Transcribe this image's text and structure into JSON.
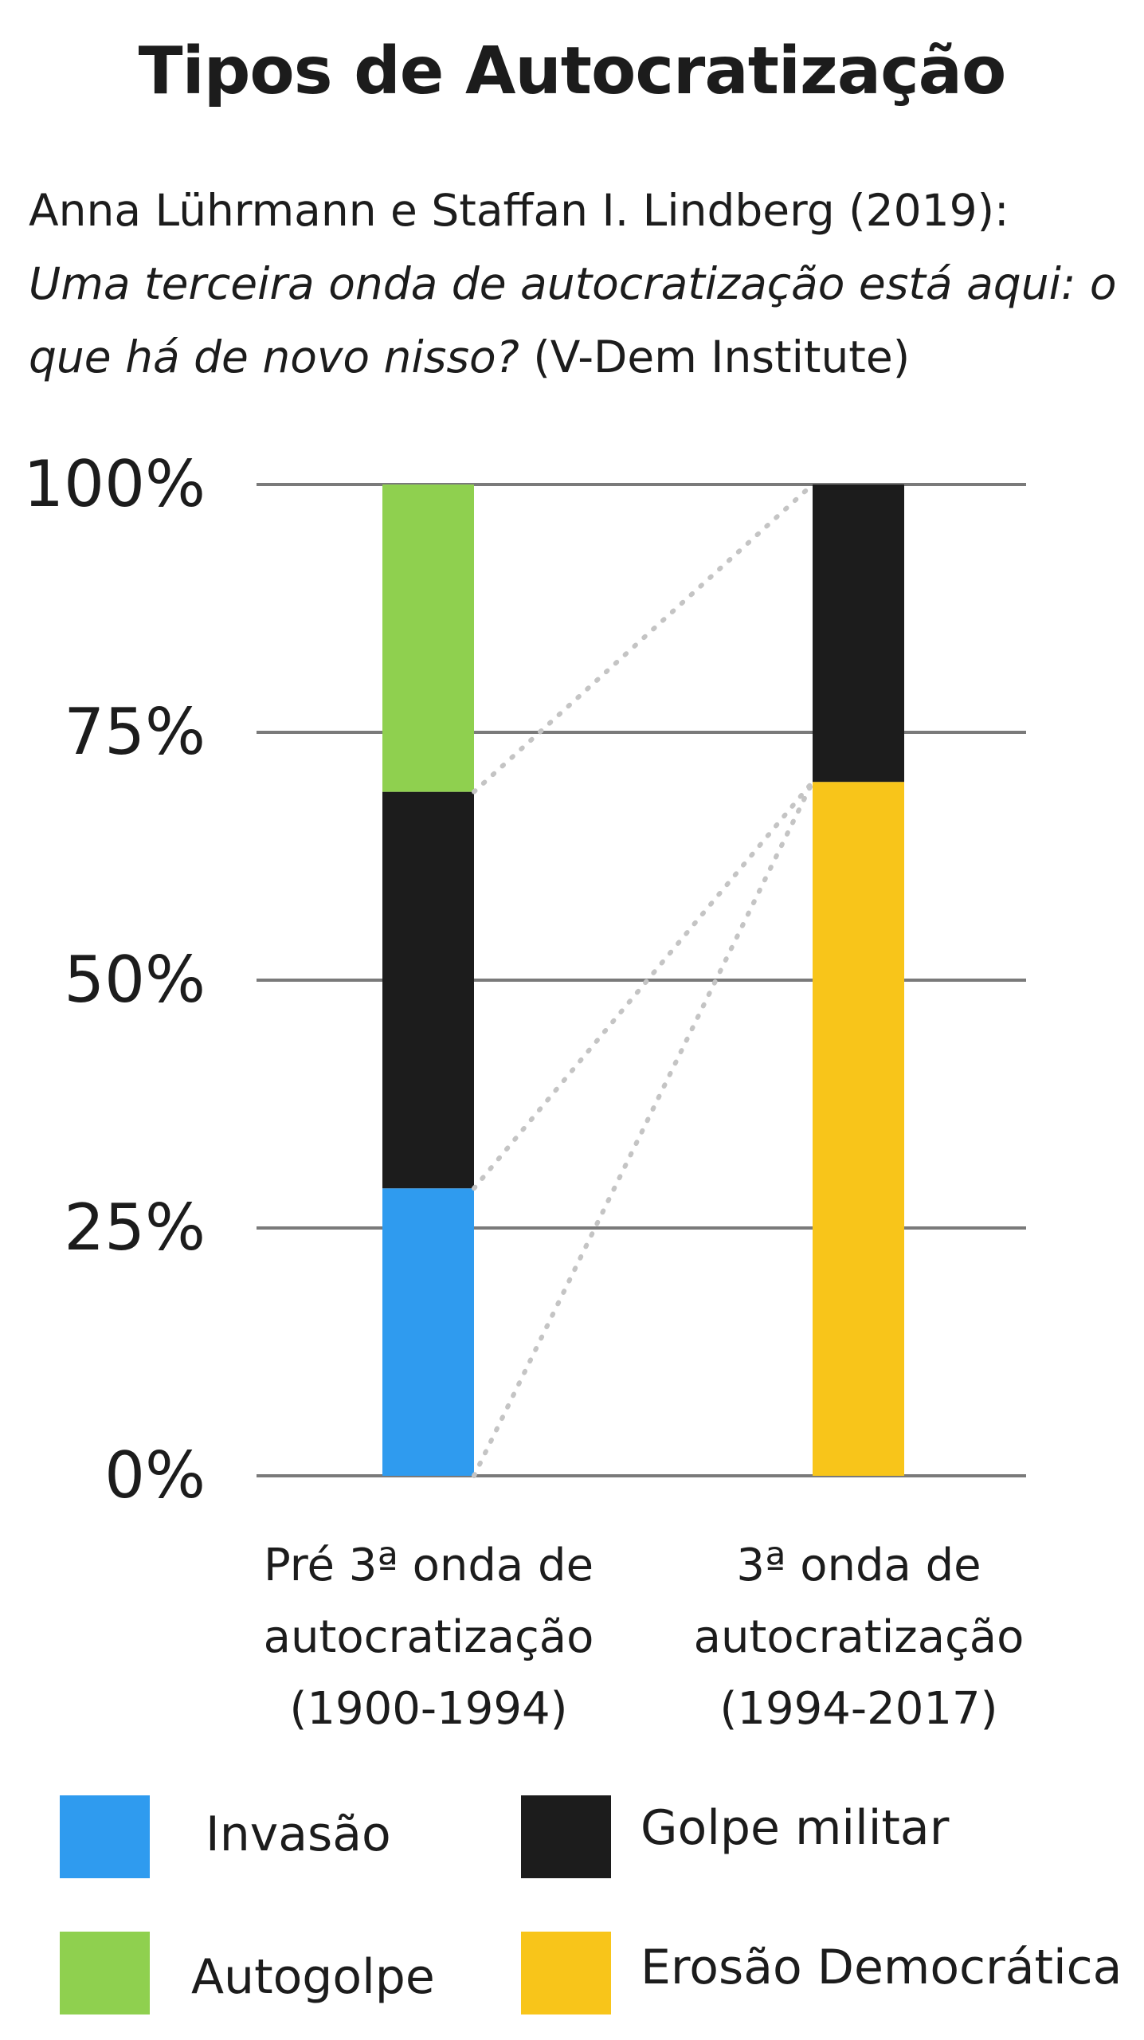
{
  "chart_data": {
    "type": "bar",
    "stacked": true,
    "title": "Tipos de Autocratização",
    "subtitle_plain": "Anna Lührmann e Staffan I. Lindberg (2019):",
    "subtitle_italic": "Uma terceira onda de autocratização está aqui: o que há de novo nisso?",
    "subtitle_source": "(V-Dem Institute)",
    "categories": [
      [
        "Pré 3ª onda de",
        "autocratização",
        "(1900-1994)"
      ],
      [
        "3ª onda de",
        "autocratização",
        "(1994-2017)"
      ]
    ],
    "ylim": [
      0,
      100
    ],
    "yticks": [
      "0%",
      "25%",
      "50%",
      "75%",
      "100%"
    ],
    "ytick_values": [
      0,
      25,
      50,
      75,
      100
    ],
    "grid": true,
    "series": [
      {
        "name": "Invasão",
        "color": "#2f9bef",
        "values": [
          29,
          0
        ]
      },
      {
        "name": "Golpe militar",
        "color": "#1c1c1c",
        "values": [
          40,
          30
        ]
      },
      {
        "name": "Autogolpe",
        "color": "#8fd04f",
        "values": [
          31,
          0
        ]
      },
      {
        "name": "Erosão Democrática",
        "color": "#f8c51a",
        "values": [
          0,
          70
        ]
      }
    ],
    "stack_order": [
      [
        "Invasão",
        "Golpe militar",
        "Autogolpe"
      ],
      [
        "Erosão Democrática",
        "Golpe militar"
      ]
    ]
  },
  "legend": [
    {
      "label": "Invasão",
      "color": "#2f9bef"
    },
    {
      "label": "Golpe militar",
      "color": "#1c1c1c"
    },
    {
      "label": "Autogolpe",
      "color": "#8fd04f"
    },
    {
      "label": "Erosão Democrática",
      "color": "#f8c51a"
    }
  ],
  "colors": {
    "grid": "#7a7a7a",
    "connector": "#c4c4c4"
  }
}
